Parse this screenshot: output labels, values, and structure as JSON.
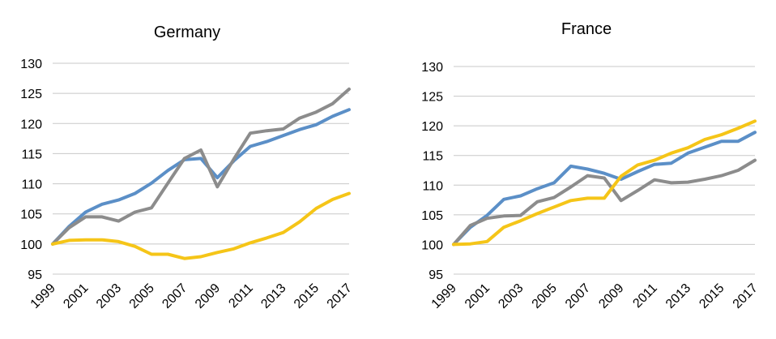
{
  "chart_data": [
    {
      "type": "line",
      "title": "Germany",
      "xlabel": "",
      "ylabel": "",
      "ylim": [
        95,
        130
      ],
      "yticks": [
        95,
        100,
        105,
        110,
        115,
        120,
        125,
        130
      ],
      "x": [
        1999,
        2000,
        2001,
        2002,
        2003,
        2004,
        2005,
        2006,
        2007,
        2008,
        2009,
        2010,
        2011,
        2012,
        2013,
        2014,
        2015,
        2016,
        2017
      ],
      "xtick_labels": [
        "1999",
        "2001",
        "2003",
        "2005",
        "2007",
        "2009",
        "2011",
        "2013",
        "2015",
        "2017"
      ],
      "grid": true,
      "legend": "none",
      "series": [
        {
          "color": "#5b8fc7",
          "values": [
            100,
            102.9,
            105.3,
            106.6,
            107.3,
            108.4,
            110.1,
            112.2,
            114.0,
            114.2,
            111.0,
            113.8,
            116.2,
            117.0,
            118.0,
            119.0,
            119.8,
            121.2,
            122.3
          ]
        },
        {
          "color": "#8c8c8c",
          "values": [
            100,
            102.7,
            104.5,
            104.5,
            103.8,
            105.3,
            106.0,
            110.1,
            114.2,
            115.6,
            109.5,
            114.1,
            118.4,
            118.8,
            119.1,
            120.9,
            121.9,
            123.3,
            125.7
          ]
        },
        {
          "color": "#f5c518",
          "values": [
            100,
            100.6,
            100.7,
            100.7,
            100.4,
            99.6,
            98.3,
            98.3,
            97.6,
            97.9,
            98.6,
            99.2,
            100.2,
            101.0,
            101.9,
            103.7,
            105.9,
            107.4,
            108.4
          ]
        }
      ]
    },
    {
      "type": "line",
      "title": "France",
      "xlabel": "",
      "ylabel": "",
      "ylim": [
        95,
        130
      ],
      "yticks": [
        95,
        100,
        105,
        110,
        115,
        120,
        125,
        130
      ],
      "x": [
        1999,
        2000,
        2001,
        2002,
        2003,
        2004,
        2005,
        2006,
        2007,
        2008,
        2009,
        2010,
        2011,
        2012,
        2013,
        2014,
        2015,
        2016,
        2017
      ],
      "xtick_labels": [
        "1999",
        "2001",
        "2003",
        "2005",
        "2007",
        "2009",
        "2011",
        "2013",
        "2015",
        "2017"
      ],
      "grid": true,
      "legend": "none",
      "series": [
        {
          "color": "#5b8fc7",
          "values": [
            100,
            102.9,
            104.9,
            107.6,
            108.2,
            109.4,
            110.4,
            113.2,
            112.7,
            112.0,
            111.0,
            112.3,
            113.5,
            113.7,
            115.4,
            116.4,
            117.4,
            117.4,
            118.9
          ]
        },
        {
          "color": "#8c8c8c",
          "values": [
            100,
            103.2,
            104.4,
            104.8,
            104.9,
            107.2,
            107.9,
            109.7,
            111.6,
            111.2,
            107.4,
            109.1,
            110.9,
            110.4,
            110.5,
            111.0,
            111.6,
            112.5,
            114.2
          ]
        },
        {
          "color": "#f5c518",
          "values": [
            100,
            100.1,
            100.5,
            102.9,
            104.0,
            105.2,
            106.3,
            107.4,
            107.8,
            107.8,
            111.5,
            113.4,
            114.2,
            115.4,
            116.3,
            117.7,
            118.5,
            119.6,
            120.8
          ]
        }
      ]
    }
  ]
}
